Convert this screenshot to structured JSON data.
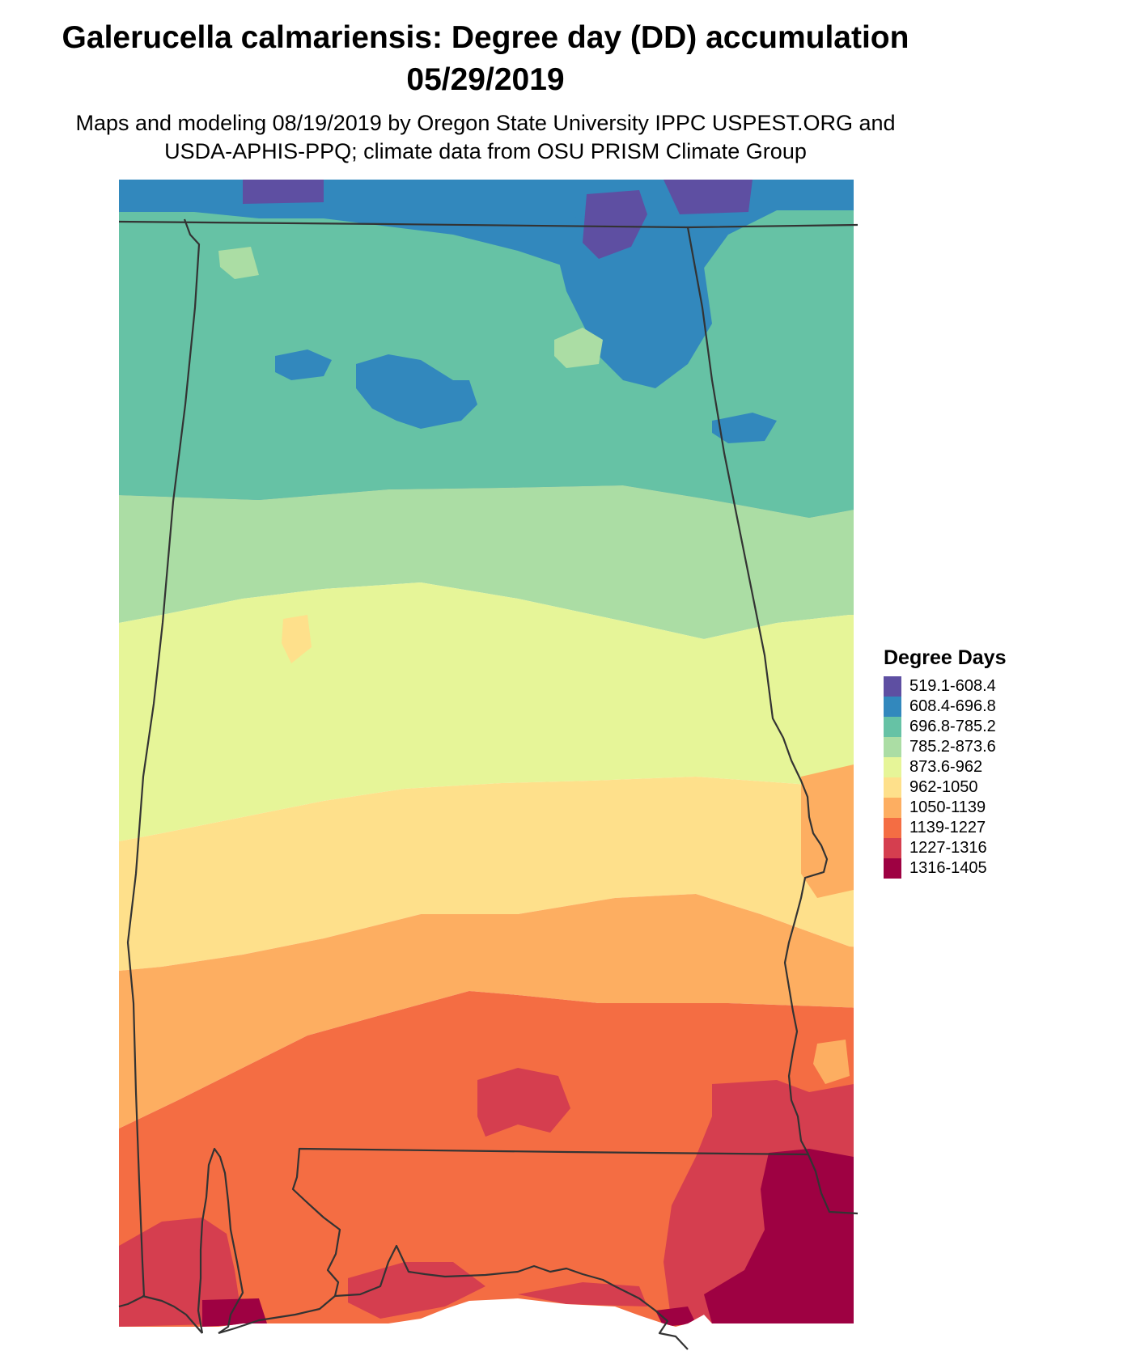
{
  "title": {
    "line1": "Galerucella calmariensis: Degree day (DD) accumulation",
    "line2": "05/29/2019"
  },
  "subtitle": {
    "line1": "Maps and modeling 08/19/2019 by Oregon State University IPPC USPEST.ORG and",
    "line2": "USDA-APHIS-PPQ; climate data from OSU PRISM Climate Group"
  },
  "legend": {
    "title": "Degree Days",
    "items": [
      {
        "label": "519.1-608.4",
        "color": "#5e4fa2"
      },
      {
        "label": "608.4-696.8",
        "color": "#3288bd"
      },
      {
        "label": "696.8-785.2",
        "color": "#66c2a5"
      },
      {
        "label": "785.2-873.6",
        "color": "#abdda4"
      },
      {
        "label": "873.6-962",
        "color": "#e6f598"
      },
      {
        "label": "962-1050",
        "color": "#fee08b"
      },
      {
        "label": "1050-1139",
        "color": "#fdae61"
      },
      {
        "label": "1139-1227",
        "color": "#f46d43"
      },
      {
        "label": "1227-1316",
        "color": "#d53e4f"
      },
      {
        "label": "1316-1405",
        "color": "#9e0142"
      }
    ]
  },
  "map": {
    "region": "Alabama",
    "ocean_color": "#ffffff",
    "border_color": "#333333"
  }
}
